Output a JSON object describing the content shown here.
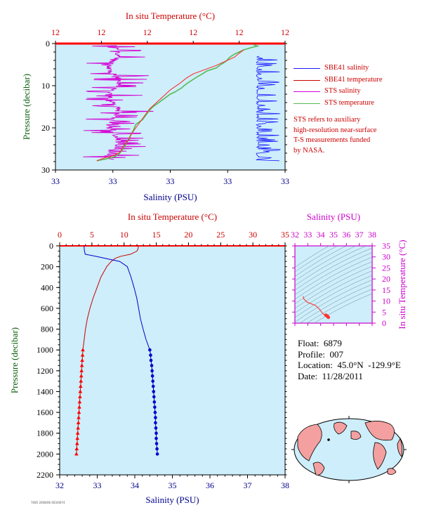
{
  "info": {
    "float_line": "Float:  6879",
    "profile_line": "Profile:  007",
    "location_line": "Location:  45.0°N  -129.9°E",
    "date_line": "Date:  11/28/2011"
  },
  "legend": [
    {
      "label": "SBE41 salinity",
      "color": "#1a1aff"
    },
    {
      "label": "SBE41 temperature",
      "color": "#cc0000"
    },
    {
      "label": "STS salinity",
      "color": "#d400d4"
    },
    {
      "label": "STS temperature",
      "color": "#55bb55"
    }
  ],
  "note_lines": [
    "STS refers to auxiliary",
    "high-resolution near-surface",
    "T-S measurements funded",
    "by NASA."
  ],
  "footer_text": "7085 2008/06 003/0074",
  "colors": {
    "plot_bg": "#cdeefa",
    "temperature": "#cc0000",
    "salinity": "#00008b",
    "ts_axis": "#cc00cc",
    "pressure_axis": "#0b5e0b",
    "sbe_salinity": "#1a1aff",
    "sbe_temperature": "#ff2222",
    "sts_salinity": "#d400d4",
    "sts_temperature": "#55bb55"
  },
  "chart_data": [
    {
      "type": "line",
      "name": "surface-profile",
      "title": "",
      "top_xlabel": "In situ Temperature (°C)",
      "xlabel": "Salinity (PSU)",
      "ylabel": "Pressure (decibar)",
      "top_ticks": [
        "12",
        "12",
        "12",
        "12",
        "12",
        "12"
      ],
      "bottom_ticks": [
        "33",
        "33",
        "33",
        "33",
        "33"
      ],
      "y_ticks": [
        0,
        10,
        20,
        30
      ],
      "ylim": [
        0,
        30
      ],
      "series": [
        {
          "name": "STS temperature",
          "x": [
            0.86,
            0.88,
            0.85,
            0.82,
            0.8,
            0.78,
            0.76,
            0.75,
            0.74,
            0.72,
            0.7,
            0.66,
            0.64,
            0.62,
            0.6,
            0.58,
            0.56,
            0.55,
            0.52,
            0.5,
            0.48,
            0.45,
            0.42,
            0.4,
            0.38,
            0.35,
            0.34,
            0.33,
            0.32,
            0.31,
            0.3,
            0.29,
            0.28,
            0.26,
            0.22,
            0.18
          ],
          "y": [
            0.2,
            0.6,
            1.0,
            1.5,
            2.0,
            2.5,
            3.2,
            3.8,
            4.3,
            5.0,
            5.8,
            6.5,
            7.2,
            7.8,
            8.5,
            9.2,
            10.0,
            10.5,
            11.5,
            12.0,
            12.8,
            14.0,
            15.2,
            16.5,
            18.0,
            19.2,
            20.5,
            21.5,
            22.5,
            23.5,
            24.5,
            25.3,
            26.0,
            26.8,
            27.4,
            27.8
          ]
        },
        {
          "name": "SBE41 temperature",
          "x": [
            0.82,
            0.8,
            0.78,
            0.74,
            0.7,
            0.65,
            0.6,
            0.57,
            0.54,
            0.5,
            0.47,
            0.44,
            0.41,
            0.39,
            0.37,
            0.35,
            0.33,
            0.32,
            0.3,
            0.29,
            0.28,
            0.25,
            0.21,
            0.18
          ],
          "y": [
            1.5,
            2.3,
            3.2,
            4.2,
            5.2,
            6.2,
            7.2,
            8.2,
            9.5,
            11.0,
            12.5,
            14.0,
            15.5,
            17.0,
            18.5,
            20.0,
            21.5,
            22.8,
            24.0,
            25.0,
            25.8,
            26.6,
            27.2,
            27.8
          ]
        },
        {
          "name": "STS salinity",
          "x_range": [
            0.12,
            0.47
          ],
          "y_range": [
            0.5,
            27.5
          ]
        },
        {
          "name": "SBE41 salinity",
          "x_range": [
            0.85,
            0.98
          ],
          "y_range": [
            3.0,
            27.8
          ]
        }
      ]
    },
    {
      "type": "line",
      "name": "full-profile",
      "title": "",
      "top_xlabel": "In situ Temperature (°C)",
      "xlabel": "Salinity (PSU)",
      "ylabel": "Pressure (decibar)",
      "temperature_ticks": [
        0,
        5,
        10,
        15,
        20,
        25,
        30,
        35
      ],
      "salinity_ticks": [
        32,
        33,
        34,
        35,
        36,
        37,
        38
      ],
      "pressure_ticks": [
        0,
        200,
        400,
        600,
        800,
        1000,
        1200,
        1400,
        1600,
        1800,
        2000,
        2200
      ],
      "xlim_temperature": [
        0,
        35
      ],
      "xlim_salinity": [
        32,
        38
      ],
      "ylim": [
        0,
        2200
      ],
      "series": [
        {
          "name": "SBE41 temperature",
          "pressure": [
            0,
            20,
            50,
            80,
            100,
            120,
            150,
            200,
            300,
            400,
            500,
            600,
            700,
            800,
            900,
            1000,
            1050,
            1100,
            1150,
            1200,
            1250,
            1300,
            1350,
            1400,
            1450,
            1500,
            1550,
            1600,
            1650,
            1700,
            1750,
            1800,
            1850,
            1900,
            1950,
            2000
          ],
          "temperature": [
            12.2,
            12.2,
            12.0,
            11.0,
            9.5,
            8.6,
            8.0,
            7.3,
            6.4,
            5.8,
            5.2,
            4.7,
            4.3,
            4.0,
            3.8,
            3.6,
            3.55,
            3.5,
            3.45,
            3.4,
            3.35,
            3.3,
            3.25,
            3.2,
            3.15,
            3.1,
            3.05,
            3.0,
            2.95,
            2.9,
            2.85,
            2.8,
            2.75,
            2.7,
            2.65,
            2.6
          ]
        },
        {
          "name": "SBE41 salinity",
          "pressure": [
            0,
            20,
            50,
            80,
            100,
            150,
            200,
            300,
            400,
            500,
            600,
            700,
            800,
            900,
            1000,
            1050,
            1100,
            1150,
            1200,
            1250,
            1300,
            1350,
            1400,
            1450,
            1500,
            1550,
            1600,
            1650,
            1700,
            1750,
            1800,
            1850,
            1900,
            1950,
            2000
          ],
          "salinity": [
            32.65,
            32.65,
            32.66,
            32.68,
            32.95,
            33.6,
            33.8,
            33.9,
            33.98,
            34.05,
            34.1,
            34.15,
            34.22,
            34.3,
            34.4,
            34.42,
            34.43,
            34.45,
            34.46,
            34.47,
            34.48,
            34.49,
            34.5,
            34.51,
            34.52,
            34.53,
            34.54,
            34.55,
            34.55,
            34.56,
            34.57,
            34.57,
            34.58,
            34.59,
            34.6
          ]
        }
      ]
    },
    {
      "type": "scatter",
      "name": "ts-diagram",
      "title": "",
      "top_xlabel": "Salinity (PSU)",
      "ylabel": "In situ Temperature (°C)",
      "x_ticks": [
        32,
        33,
        34,
        35,
        36,
        37,
        38
      ],
      "y_ticks": [
        0,
        5,
        10,
        15,
        20,
        25,
        30,
        35
      ],
      "xlim": [
        32,
        38
      ],
      "ylim": [
        0,
        35
      ],
      "points": [
        {
          "salinity": 32.65,
          "temperature": 12.2
        },
        {
          "salinity": 32.68,
          "temperature": 11.0
        },
        {
          "salinity": 32.95,
          "temperature": 9.5
        },
        {
          "salinity": 33.6,
          "temperature": 8.0
        },
        {
          "salinity": 33.9,
          "temperature": 6.4
        },
        {
          "salinity": 34.05,
          "temperature": 5.2
        },
        {
          "salinity": 34.22,
          "temperature": 4.0
        },
        {
          "salinity": 34.4,
          "temperature": 3.6
        },
        {
          "salinity": 34.45,
          "temperature": 3.45
        },
        {
          "salinity": 34.5,
          "temperature": 3.2
        },
        {
          "salinity": 34.55,
          "temperature": 2.95
        },
        {
          "salinity": 34.6,
          "temperature": 2.6
        }
      ]
    }
  ]
}
